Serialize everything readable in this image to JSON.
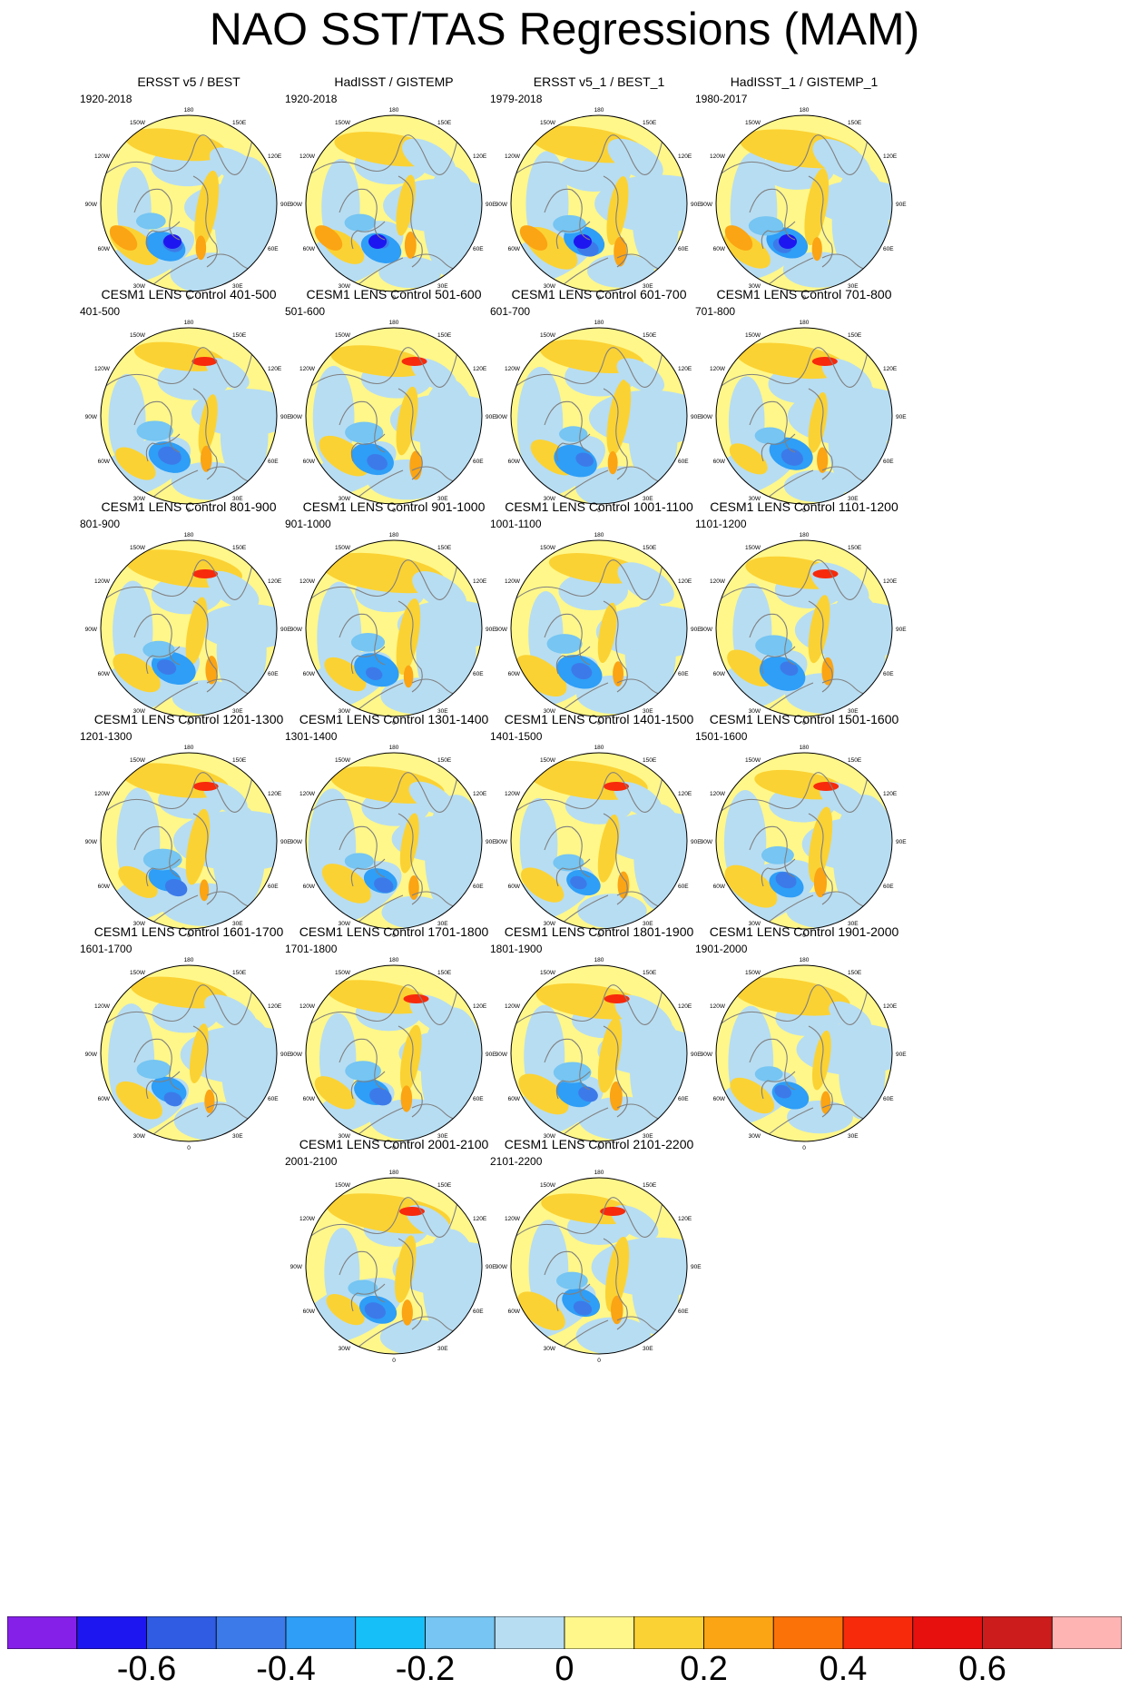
{
  "title": "NAO SST/TAS Regressions (MAM)",
  "map_labels": {
    "top": "180",
    "upper_left": "150W",
    "upper_right": "150E",
    "left_high": "120W",
    "right_high": "120E",
    "left_mid": "90W",
    "right_mid": "90E",
    "left_low": "60W",
    "right_low": "60E",
    "lower_left": "30W",
    "lower_right": "30E",
    "bottom": "0"
  },
  "chart_data": {
    "type": "heatmap",
    "projection": "north-polar-stereographic",
    "colorbar": {
      "levels": [
        -0.7,
        -0.6,
        -0.5,
        -0.4,
        -0.3,
        -0.2,
        -0.1,
        0,
        0.1,
        0.2,
        0.3,
        0.4,
        0.5,
        0.6,
        0.7
      ],
      "colors": [
        "#8520e8",
        "#1e16f0",
        "#2f5ce3",
        "#3d7ae9",
        "#2e9ef7",
        "#17bff8",
        "#76c5f2",
        "#b7ddf2",
        "#fff78a",
        "#fbd233",
        "#fba414",
        "#fb7208",
        "#f72a0b",
        "#e80f0f",
        "#cc1c1c",
        "#ffb4b4"
      ],
      "tick_labels": [
        "-0.6",
        "-0.4",
        "-0.2",
        "0",
        "0.2",
        "0.4",
        "0.6"
      ],
      "tick_values": [
        -0.6,
        -0.4,
        -0.2,
        0,
        0.2,
        0.4,
        0.6
      ]
    },
    "panels": [
      {
        "title": "ERSST v5 / BEST",
        "period": "1920-2018"
      },
      {
        "title": "HadISST / GISTEMP",
        "period": "1920-2018"
      },
      {
        "title": "ERSST v5_1 / BEST_1",
        "period": "1979-2018"
      },
      {
        "title": "HadISST_1 / GISTEMP_1",
        "period": "1980-2017"
      },
      {
        "title": "CESM1 LENS Control 401-500",
        "period": "401-500"
      },
      {
        "title": "CESM1 LENS Control 501-600",
        "period": "501-600"
      },
      {
        "title": "CESM1 LENS Control 601-700",
        "period": "601-700"
      },
      {
        "title": "CESM1 LENS Control 701-800",
        "period": "701-800"
      },
      {
        "title": "CESM1 LENS Control 801-900",
        "period": "801-900"
      },
      {
        "title": "CESM1 LENS Control 901-1000",
        "period": "901-1000"
      },
      {
        "title": "CESM1 LENS Control 1001-1100",
        "period": "1001-1100"
      },
      {
        "title": "CESM1 LENS Control 1101-1200",
        "period": "1101-1200"
      },
      {
        "title": "CESM1 LENS Control 1201-1300",
        "period": "1201-1300"
      },
      {
        "title": "CESM1 LENS Control 1301-1400",
        "period": "1301-1400"
      },
      {
        "title": "CESM1 LENS Control 1401-1500",
        "period": "1401-1500"
      },
      {
        "title": "CESM1 LENS Control 1501-1600",
        "period": "1501-1600"
      },
      {
        "title": "CESM1 LENS Control 1601-1700",
        "period": "1601-1700"
      },
      {
        "title": "CESM1 LENS Control 1701-1800",
        "period": "1701-1800"
      },
      {
        "title": "CESM1 LENS Control 1801-1900",
        "period": "1801-1900"
      },
      {
        "title": "CESM1 LENS Control 1901-2000",
        "period": "1901-2000"
      },
      {
        "title": "CESM1 LENS Control 2001-2100",
        "period": "2001-2100"
      },
      {
        "title": "CESM1 LENS Control 2101-2200",
        "period": "2101-2200"
      }
    ]
  }
}
